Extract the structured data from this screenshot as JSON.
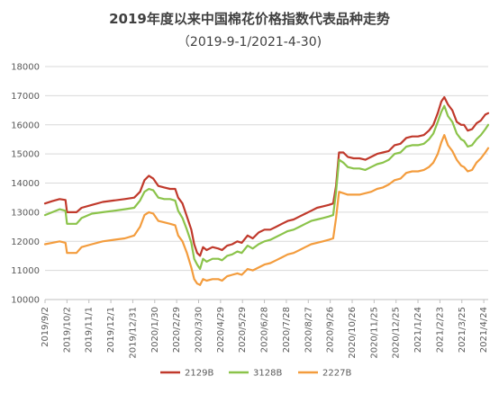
{
  "chart_data": {
    "type": "line",
    "title": "2019年度以来中国棉花价格指数代表品种走势",
    "subtitle": "（2019-9-1/2021-4-30)",
    "xlabel": "",
    "ylabel": "",
    "ylim": [
      10000,
      18000
    ],
    "yticks": [
      10000,
      11000,
      12000,
      13000,
      14000,
      15000,
      16000,
      17000,
      18000
    ],
    "grid": "horizontal",
    "legend_position": "bottom",
    "x_tick_labels": [
      "2019/9/2",
      "2019/10/2",
      "2019/11/1",
      "2019/12/1",
      "2019/12/31",
      "2020/1/30",
      "2020/2/29",
      "2020/3/30",
      "2020/4/29",
      "2020/5/29",
      "2020/6/28",
      "2020/7/28",
      "2020/8/27",
      "2020/9/26",
      "2020/10/26",
      "2020/11/25",
      "2020/12/25",
      "2021/1/24",
      "2021/2/23",
      "2021/3/25",
      "2021/4/24"
    ],
    "x_start": "2019-09-02",
    "x_end": "2021-04-30",
    "series": [
      {
        "name": "2129B",
        "color": "#c0392b",
        "points": [
          [
            "2019-09-02",
            13300
          ],
          [
            "2019-09-12",
            13380
          ],
          [
            "2019-09-22",
            13450
          ],
          [
            "2019-09-30",
            13420
          ],
          [
            "2019-10-02",
            13000
          ],
          [
            "2019-10-15",
            13000
          ],
          [
            "2019-10-22",
            13150
          ],
          [
            "2019-11-05",
            13250
          ],
          [
            "2019-11-20",
            13350
          ],
          [
            "2019-12-05",
            13400
          ],
          [
            "2019-12-20",
            13450
          ],
          [
            "2020-01-02",
            13500
          ],
          [
            "2020-01-10",
            13700
          ],
          [
            "2020-01-16",
            14100
          ],
          [
            "2020-01-22",
            14250
          ],
          [
            "2020-01-28",
            14150
          ],
          [
            "2020-02-04",
            13900
          ],
          [
            "2020-02-12",
            13850
          ],
          [
            "2020-02-20",
            13800
          ],
          [
            "2020-02-27",
            13800
          ],
          [
            "2020-03-02",
            13500
          ],
          [
            "2020-03-08",
            13300
          ],
          [
            "2020-03-14",
            12850
          ],
          [
            "2020-03-20",
            12400
          ],
          [
            "2020-03-24",
            11900
          ],
          [
            "2020-03-28",
            11600
          ],
          [
            "2020-04-01",
            11500
          ],
          [
            "2020-04-05",
            11800
          ],
          [
            "2020-04-10",
            11700
          ],
          [
            "2020-04-18",
            11800
          ],
          [
            "2020-04-26",
            11750
          ],
          [
            "2020-05-01",
            11700
          ],
          [
            "2020-05-08",
            11850
          ],
          [
            "2020-05-15",
            11900
          ],
          [
            "2020-05-22",
            12000
          ],
          [
            "2020-05-28",
            11950
          ],
          [
            "2020-06-05",
            12200
          ],
          [
            "2020-06-12",
            12100
          ],
          [
            "2020-06-20",
            12300
          ],
          [
            "2020-06-28",
            12400
          ],
          [
            "2020-07-06",
            12400
          ],
          [
            "2020-07-14",
            12500
          ],
          [
            "2020-07-22",
            12600
          ],
          [
            "2020-07-30",
            12700
          ],
          [
            "2020-08-07",
            12750
          ],
          [
            "2020-08-15",
            12850
          ],
          [
            "2020-08-23",
            12950
          ],
          [
            "2020-08-31",
            13050
          ],
          [
            "2020-09-08",
            13150
          ],
          [
            "2020-09-16",
            13200
          ],
          [
            "2020-09-24",
            13250
          ],
          [
            "2020-09-30",
            13300
          ],
          [
            "2020-10-04",
            13900
          ],
          [
            "2020-10-08",
            15050
          ],
          [
            "2020-10-14",
            15050
          ],
          [
            "2020-10-20",
            14900
          ],
          [
            "2020-10-28",
            14850
          ],
          [
            "2020-11-05",
            14850
          ],
          [
            "2020-11-13",
            14800
          ],
          [
            "2020-11-21",
            14900
          ],
          [
            "2020-11-29",
            15000
          ],
          [
            "2020-12-07",
            15050
          ],
          [
            "2020-12-15",
            15100
          ],
          [
            "2020-12-23",
            15300
          ],
          [
            "2020-12-31",
            15350
          ],
          [
            "2021-01-08",
            15550
          ],
          [
            "2021-01-16",
            15600
          ],
          [
            "2021-01-24",
            15600
          ],
          [
            "2021-02-01",
            15650
          ],
          [
            "2021-02-08",
            15800
          ],
          [
            "2021-02-14",
            16000
          ],
          [
            "2021-02-20",
            16400
          ],
          [
            "2021-02-25",
            16800
          ],
          [
            "2021-03-01",
            16950
          ],
          [
            "2021-03-06",
            16700
          ],
          [
            "2021-03-12",
            16500
          ],
          [
            "2021-03-18",
            16100
          ],
          [
            "2021-03-24",
            16000
          ],
          [
            "2021-03-28",
            16000
          ],
          [
            "2021-04-02",
            15800
          ],
          [
            "2021-04-08",
            15850
          ],
          [
            "2021-04-14",
            16050
          ],
          [
            "2021-04-20",
            16150
          ],
          [
            "2021-04-26",
            16350
          ],
          [
            "2021-04-30",
            16400
          ]
        ]
      },
      {
        "name": "3128B",
        "color": "#8bc34a",
        "points": [
          [
            "2019-09-02",
            12900
          ],
          [
            "2019-09-12",
            13000
          ],
          [
            "2019-09-22",
            13100
          ],
          [
            "2019-09-30",
            13050
          ],
          [
            "2019-10-02",
            12600
          ],
          [
            "2019-10-15",
            12600
          ],
          [
            "2019-10-22",
            12800
          ],
          [
            "2019-11-05",
            12950
          ],
          [
            "2019-11-20",
            13000
          ],
          [
            "2019-12-05",
            13050
          ],
          [
            "2019-12-20",
            13100
          ],
          [
            "2020-01-02",
            13150
          ],
          [
            "2020-01-10",
            13400
          ],
          [
            "2020-01-16",
            13700
          ],
          [
            "2020-01-22",
            13800
          ],
          [
            "2020-01-28",
            13750
          ],
          [
            "2020-02-04",
            13500
          ],
          [
            "2020-02-12",
            13450
          ],
          [
            "2020-02-20",
            13450
          ],
          [
            "2020-02-27",
            13400
          ],
          [
            "2020-03-02",
            13050
          ],
          [
            "2020-03-08",
            12800
          ],
          [
            "2020-03-14",
            12400
          ],
          [
            "2020-03-20",
            11950
          ],
          [
            "2020-03-24",
            11400
          ],
          [
            "2020-03-28",
            11200
          ],
          [
            "2020-04-01",
            11050
          ],
          [
            "2020-04-05",
            11400
          ],
          [
            "2020-04-10",
            11300
          ],
          [
            "2020-04-18",
            11400
          ],
          [
            "2020-04-26",
            11400
          ],
          [
            "2020-05-01",
            11350
          ],
          [
            "2020-05-08",
            11500
          ],
          [
            "2020-05-15",
            11550
          ],
          [
            "2020-05-22",
            11650
          ],
          [
            "2020-05-28",
            11600
          ],
          [
            "2020-06-05",
            11850
          ],
          [
            "2020-06-12",
            11750
          ],
          [
            "2020-06-20",
            11900
          ],
          [
            "2020-06-28",
            12000
          ],
          [
            "2020-07-06",
            12050
          ],
          [
            "2020-07-14",
            12150
          ],
          [
            "2020-07-22",
            12250
          ],
          [
            "2020-07-30",
            12350
          ],
          [
            "2020-08-07",
            12400
          ],
          [
            "2020-08-15",
            12500
          ],
          [
            "2020-08-23",
            12600
          ],
          [
            "2020-08-31",
            12700
          ],
          [
            "2020-09-08",
            12750
          ],
          [
            "2020-09-16",
            12800
          ],
          [
            "2020-09-24",
            12850
          ],
          [
            "2020-09-30",
            12900
          ],
          [
            "2020-10-04",
            13700
          ],
          [
            "2020-10-08",
            14800
          ],
          [
            "2020-10-14",
            14700
          ],
          [
            "2020-10-20",
            14550
          ],
          [
            "2020-10-28",
            14500
          ],
          [
            "2020-11-05",
            14500
          ],
          [
            "2020-11-13",
            14450
          ],
          [
            "2020-11-21",
            14550
          ],
          [
            "2020-11-29",
            14650
          ],
          [
            "2020-12-07",
            14700
          ],
          [
            "2020-12-15",
            14800
          ],
          [
            "2020-12-23",
            15000
          ],
          [
            "2020-12-31",
            15050
          ],
          [
            "2021-01-08",
            15250
          ],
          [
            "2021-01-16",
            15300
          ],
          [
            "2021-01-24",
            15300
          ],
          [
            "2021-02-01",
            15350
          ],
          [
            "2021-02-08",
            15500
          ],
          [
            "2021-02-14",
            15700
          ],
          [
            "2021-02-20",
            16100
          ],
          [
            "2021-02-25",
            16450
          ],
          [
            "2021-03-01",
            16650
          ],
          [
            "2021-03-06",
            16300
          ],
          [
            "2021-03-12",
            16100
          ],
          [
            "2021-03-18",
            15700
          ],
          [
            "2021-03-24",
            15500
          ],
          [
            "2021-03-28",
            15450
          ],
          [
            "2021-04-02",
            15250
          ],
          [
            "2021-04-08",
            15300
          ],
          [
            "2021-04-14",
            15500
          ],
          [
            "2021-04-20",
            15650
          ],
          [
            "2021-04-26",
            15850
          ],
          [
            "2021-04-30",
            16000
          ]
        ]
      },
      {
        "name": "2227B",
        "color": "#f39c3d",
        "points": [
          [
            "2019-09-02",
            11900
          ],
          [
            "2019-09-12",
            11950
          ],
          [
            "2019-09-22",
            12000
          ],
          [
            "2019-09-30",
            11950
          ],
          [
            "2019-10-02",
            11600
          ],
          [
            "2019-10-15",
            11600
          ],
          [
            "2019-10-22",
            11800
          ],
          [
            "2019-11-05",
            11900
          ],
          [
            "2019-11-20",
            12000
          ],
          [
            "2019-12-05",
            12050
          ],
          [
            "2019-12-20",
            12100
          ],
          [
            "2020-01-02",
            12200
          ],
          [
            "2020-01-10",
            12500
          ],
          [
            "2020-01-16",
            12900
          ],
          [
            "2020-01-22",
            13000
          ],
          [
            "2020-01-28",
            12950
          ],
          [
            "2020-02-04",
            12700
          ],
          [
            "2020-02-12",
            12650
          ],
          [
            "2020-02-20",
            12600
          ],
          [
            "2020-02-27",
            12550
          ],
          [
            "2020-03-02",
            12200
          ],
          [
            "2020-03-08",
            12000
          ],
          [
            "2020-03-14",
            11600
          ],
          [
            "2020-03-20",
            11100
          ],
          [
            "2020-03-24",
            10700
          ],
          [
            "2020-03-28",
            10550
          ],
          [
            "2020-04-01",
            10500
          ],
          [
            "2020-04-05",
            10700
          ],
          [
            "2020-04-10",
            10650
          ],
          [
            "2020-04-18",
            10700
          ],
          [
            "2020-04-26",
            10700
          ],
          [
            "2020-05-01",
            10650
          ],
          [
            "2020-05-08",
            10800
          ],
          [
            "2020-05-15",
            10850
          ],
          [
            "2020-05-22",
            10900
          ],
          [
            "2020-05-28",
            10850
          ],
          [
            "2020-06-05",
            11050
          ],
          [
            "2020-06-12",
            11000
          ],
          [
            "2020-06-20",
            11100
          ],
          [
            "2020-06-28",
            11200
          ],
          [
            "2020-07-06",
            11250
          ],
          [
            "2020-07-14",
            11350
          ],
          [
            "2020-07-22",
            11450
          ],
          [
            "2020-07-30",
            11550
          ],
          [
            "2020-08-07",
            11600
          ],
          [
            "2020-08-15",
            11700
          ],
          [
            "2020-08-23",
            11800
          ],
          [
            "2020-08-31",
            11900
          ],
          [
            "2020-09-08",
            11950
          ],
          [
            "2020-09-16",
            12000
          ],
          [
            "2020-09-24",
            12050
          ],
          [
            "2020-09-30",
            12100
          ],
          [
            "2020-10-04",
            12800
          ],
          [
            "2020-10-08",
            13700
          ],
          [
            "2020-10-14",
            13650
          ],
          [
            "2020-10-20",
            13600
          ],
          [
            "2020-10-28",
            13600
          ],
          [
            "2020-11-05",
            13600
          ],
          [
            "2020-11-13",
            13650
          ],
          [
            "2020-11-21",
            13700
          ],
          [
            "2020-11-29",
            13800
          ],
          [
            "2020-12-07",
            13850
          ],
          [
            "2020-12-15",
            13950
          ],
          [
            "2020-12-23",
            14100
          ],
          [
            "2020-12-31",
            14150
          ],
          [
            "2021-01-08",
            14350
          ],
          [
            "2021-01-16",
            14400
          ],
          [
            "2021-01-24",
            14400
          ],
          [
            "2021-02-01",
            14450
          ],
          [
            "2021-02-08",
            14550
          ],
          [
            "2021-02-14",
            14700
          ],
          [
            "2021-02-20",
            15000
          ],
          [
            "2021-02-25",
            15400
          ],
          [
            "2021-03-01",
            15650
          ],
          [
            "2021-03-06",
            15300
          ],
          [
            "2021-03-12",
            15100
          ],
          [
            "2021-03-18",
            14800
          ],
          [
            "2021-03-24",
            14600
          ],
          [
            "2021-03-28",
            14550
          ],
          [
            "2021-04-02",
            14400
          ],
          [
            "2021-04-08",
            14450
          ],
          [
            "2021-04-14",
            14700
          ],
          [
            "2021-04-20",
            14850
          ],
          [
            "2021-04-26",
            15050
          ],
          [
            "2021-04-30",
            15200
          ]
        ]
      }
    ]
  }
}
